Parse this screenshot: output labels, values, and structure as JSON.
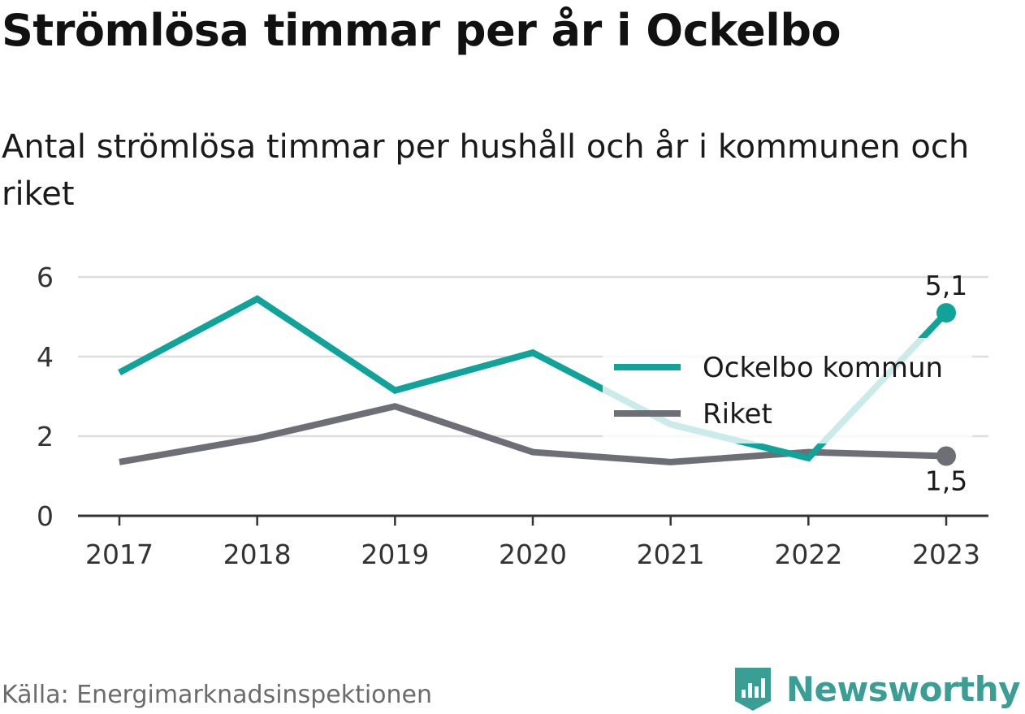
{
  "title": "Strömlösa timmar per år i Ockelbo",
  "subtitle": "Antal strömlösa timmar per hushåll och år i kommunen och riket",
  "source": "Källa: Energimarknadsinspektionen",
  "brand": {
    "name": "Newsworthy",
    "icon": "newsworthy-logo-icon",
    "color": "#3a9e95"
  },
  "chart_data": {
    "type": "line",
    "title": "Strömlösa timmar per år i Ockelbo",
    "subtitle": "Antal strömlösa timmar per hushåll och år i kommunen och riket",
    "x": [
      "2017",
      "2018",
      "2019",
      "2020",
      "2021",
      "2022",
      "2023"
    ],
    "xlabel": "",
    "ylabel": "",
    "ylim": [
      0,
      6
    ],
    "yticks": [
      "0",
      "2",
      "4",
      "6"
    ],
    "grid": true,
    "legend_position": "right",
    "series": [
      {
        "name": "Ockelbo kommun",
        "color": "#10a399",
        "values": [
          3.6,
          5.45,
          3.15,
          4.1,
          2.3,
          1.45,
          5.1
        ],
        "end_label": "5,1"
      },
      {
        "name": "Riket",
        "color": "#6e6e76",
        "values": [
          1.35,
          1.95,
          2.75,
          1.6,
          1.35,
          1.6,
          1.5
        ],
        "end_label": "1,5"
      }
    ]
  }
}
